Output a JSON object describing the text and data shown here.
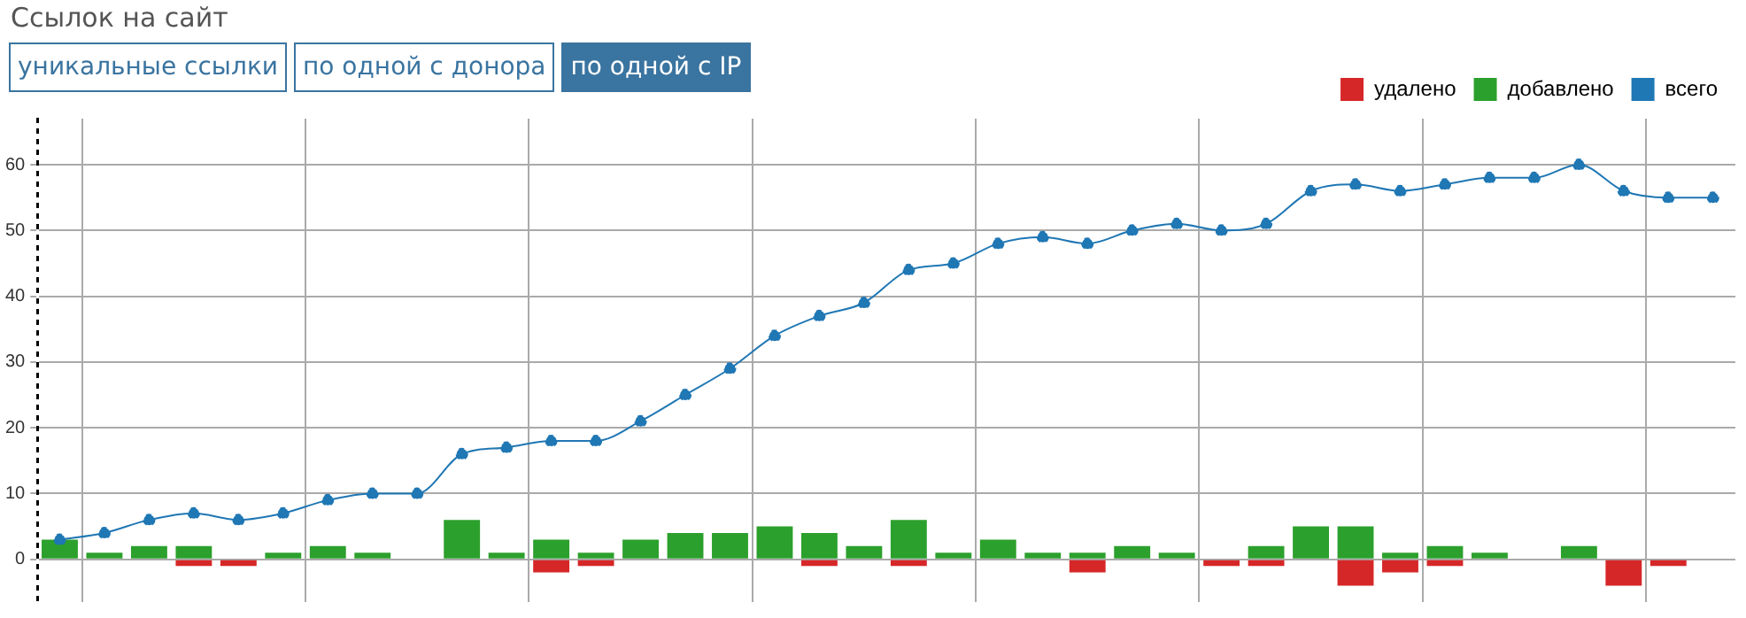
{
  "chart_data": {
    "type": "bar",
    "title": "Ссылок на сайт",
    "annotations": [
      "уникальные ссылки",
      "по одной с донора",
      "по одной с IP"
    ],
    "categories": [
      null,
      null,
      null,
      null,
      null,
      null,
      null,
      null,
      null,
      null,
      null,
      null,
      null,
      null,
      null,
      null,
      null,
      null,
      null,
      null,
      null,
      null,
      null,
      null,
      null,
      null,
      null,
      null,
      null,
      null,
      null,
      null,
      null,
      null,
      null,
      null,
      null,
      null
    ],
    "series": [
      {
        "name": "удалено",
        "color": "#d62728",
        "values": [
          0,
          0,
          0,
          -1,
          -1,
          0,
          0,
          0,
          0,
          0,
          0,
          -2,
          -1,
          0,
          0,
          0,
          0,
          -1,
          0,
          -1,
          0,
          0,
          0,
          -2,
          0,
          0,
          -1,
          -1,
          0,
          -4,
          -2,
          -1,
          0,
          0,
          0,
          -4,
          -1,
          0
        ]
      },
      {
        "name": "добавлено",
        "color": "#2ca02c",
        "values": [
          3,
          1,
          2,
          2,
          0,
          1,
          2,
          1,
          0,
          6,
          1,
          3,
          1,
          3,
          4,
          4,
          5,
          4,
          2,
          6,
          1,
          3,
          1,
          1,
          2,
          1,
          0,
          2,
          5,
          5,
          1,
          2,
          1,
          0,
          2,
          0,
          0,
          0
        ]
      },
      {
        "name": "всего",
        "color": "#1f77b4",
        "type": "line",
        "values": [
          3,
          4,
          6,
          7,
          6,
          7,
          9,
          10,
          10,
          16,
          17,
          18,
          18,
          21,
          25,
          29,
          34,
          37,
          39,
          44,
          45,
          48,
          49,
          48,
          50,
          51,
          50,
          51,
          56,
          57,
          56,
          57,
          58,
          58,
          60,
          56,
          55,
          55
        ]
      }
    ],
    "stacked": true,
    "ylim": [
      -6.5,
      67
    ],
    "yticks": [
      0,
      10,
      20,
      30,
      40,
      50,
      60
    ],
    "grid": true,
    "legend": "top right",
    "marker": "circle"
  }
}
